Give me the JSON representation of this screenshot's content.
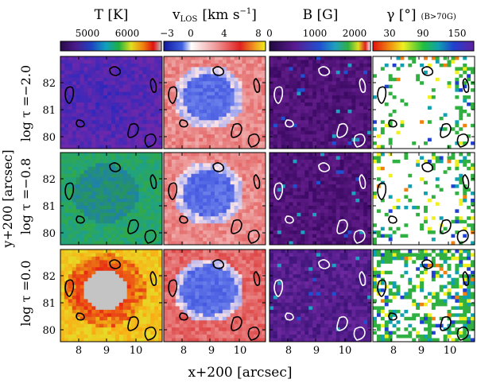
{
  "columns": [
    {
      "title": "T [K]",
      "cbar_ticks": [
        "5000",
        "6000"
      ],
      "palette": "temp"
    },
    {
      "title": "v",
      "title_sub": "LOS",
      "title_unit": "[km s",
      "title_sup": "−1",
      "title_close": "]",
      "cbar_ticks": [
        "−3",
        "0",
        "4",
        "8"
      ],
      "palette": "vel"
    },
    {
      "title": "B [G]",
      "cbar_ticks": [
        "0",
        "1000",
        "2000"
      ],
      "palette": "mag"
    },
    {
      "title": "γ [°]",
      "title_note": "(B>70G)",
      "cbar_ticks": [
        "30",
        "90",
        "150"
      ],
      "palette": "incl"
    }
  ],
  "rows": [
    {
      "label": "log τ =−2.0",
      "yticks": [
        "82",
        "81",
        "80"
      ]
    },
    {
      "label": "log τ =−0.8",
      "yticks": [
        "82",
        "81",
        "80"
      ]
    },
    {
      "label": "log τ =0.0",
      "yticks": [
        "82",
        "81",
        "80"
      ]
    }
  ],
  "xticks": [
    "8",
    "9",
    "10"
  ],
  "xlabel": "x+200 [arcsec]",
  "ylabel": "y+200 [arcsec]",
  "colors": {
    "axis": "#000000",
    "contour_dark": "#000000",
    "contour_light": "#ffffff"
  }
}
